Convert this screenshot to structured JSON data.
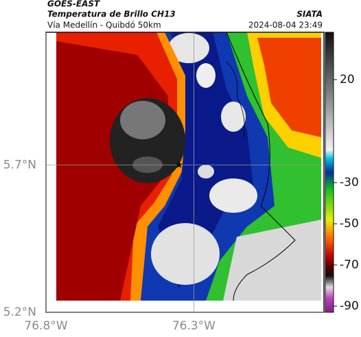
{
  "header": {
    "title": "GOES-EAST",
    "subtitle": "Temperatura de Brillo CH13",
    "source": "SIATA",
    "route": "Vía Medellín - Quibdó 50km",
    "datetime": "2024-08-04 23:49"
  },
  "map": {
    "xlim": [
      -76.8,
      -75.86
    ],
    "ylim": [
      5.2,
      6.15
    ],
    "xticks": [
      {
        "value": -76.8,
        "label": "76.8°W"
      },
      {
        "value": -76.3,
        "label": "76.3°W"
      }
    ],
    "yticks": [
      {
        "value": 5.7,
        "label": "5.7°N"
      },
      {
        "value": 5.2,
        "label": "5.2°N"
      }
    ],
    "marker": {
      "lon": -76.35,
      "lat": 5.7
    }
  },
  "colorbar": {
    "lim": [
      43,
      -93
    ],
    "ticks": [
      20,
      -30,
      -50,
      -70,
      -90
    ]
  }
}
